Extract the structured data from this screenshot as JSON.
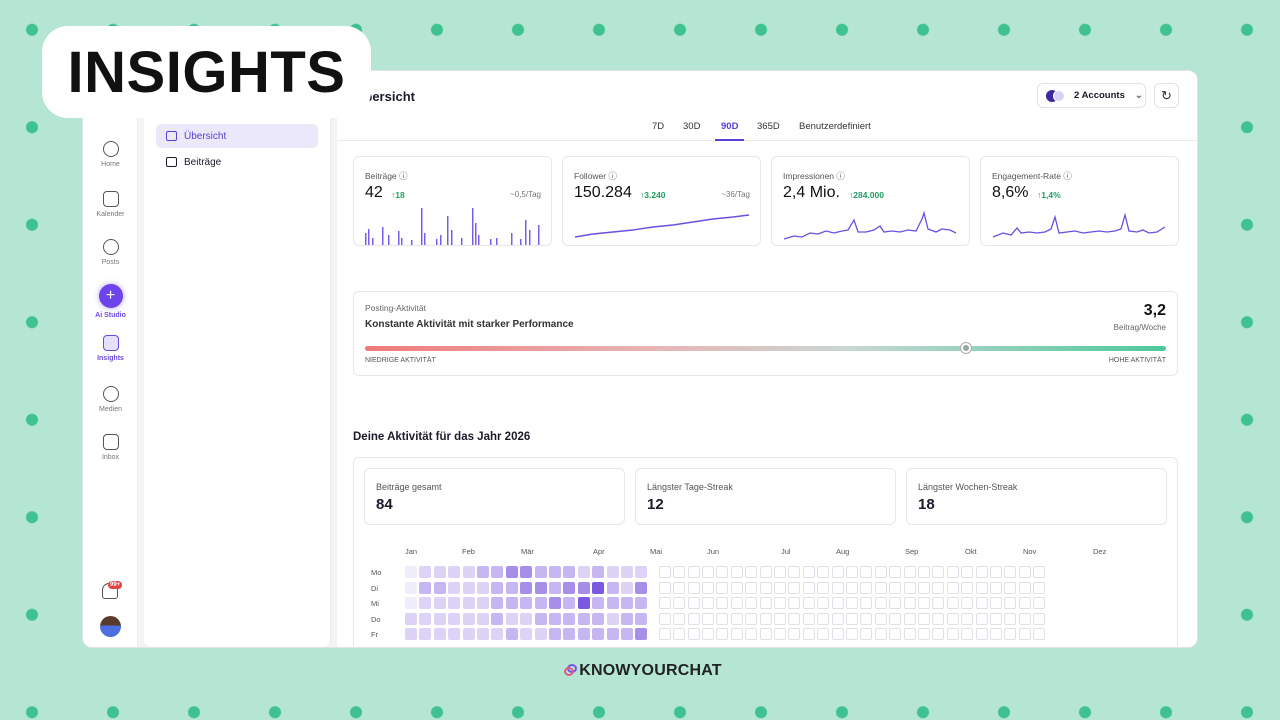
{
  "badge": "INSIGHTS",
  "rail": [
    {
      "label": "Home",
      "top": 70
    },
    {
      "label": "Kalender"
    },
    {
      "label": "Posts"
    },
    {
      "label": "Ai Studio"
    },
    {
      "label": "Insights"
    },
    {
      "label": "Medien"
    },
    {
      "label": "Inbox"
    }
  ],
  "notifications_count": "99+",
  "subnav": [
    "Übersicht",
    "Beiträge"
  ],
  "page_title": "Übersicht",
  "accounts_label": "2 Accounts",
  "tabs": [
    "7D",
    "30D",
    "90D",
    "365D",
    "Benutzerdefiniert"
  ],
  "active_tab": "90D",
  "metrics": [
    {
      "label": "Beiträge",
      "value": "42",
      "delta": "↑18",
      "rate": "~0,5/Tag"
    },
    {
      "label": "Follower",
      "value": "150.284",
      "delta": "↑3.240",
      "rate": "~36/Tag"
    },
    {
      "label": "Impressionen",
      "value": "2,4 Mio.",
      "delta": "↑284.000",
      "rate": ""
    },
    {
      "label": "Engagement-Rate",
      "value": "8,6%",
      "delta": "↑1,4%",
      "rate": ""
    }
  ],
  "posting_activity": {
    "label": "Posting-Aktivität",
    "description": "Konstante Aktivität mit starker Performance",
    "value": "3,2",
    "unit": "Beitrag/Woche",
    "low_label": "NIEDRIGE AKTIVITÄT",
    "high_label": "HOHE AKTIVITÄT",
    "level": 0.75
  },
  "year_title": "Deine Aktivität für das Jahr 2026",
  "year_stats": [
    {
      "label": "Beiträge gesamt",
      "value": "84"
    },
    {
      "label": "Längster Tage-Streak",
      "value": "12"
    },
    {
      "label": "Längster Wochen-Streak",
      "value": "18"
    }
  ],
  "months": [
    "Jan",
    "Feb",
    "Mär",
    "Apr",
    "Mai",
    "Jun",
    "Jul",
    "Aug",
    "Sep",
    "Okt",
    "Nov",
    "Dez"
  ],
  "days": [
    "Mo",
    "Di",
    "Mi",
    "Do",
    "Fr"
  ],
  "heatmap_levels": [
    [
      0,
      1,
      1,
      1,
      1,
      2,
      2,
      3,
      3,
      2,
      2,
      2,
      1,
      2,
      1,
      1,
      1
    ],
    [
      0,
      2,
      2,
      1,
      1,
      1,
      2,
      2,
      3,
      3,
      2,
      3,
      3,
      4,
      2,
      1,
      3
    ],
    [
      0,
      1,
      1,
      1,
      1,
      1,
      2,
      2,
      2,
      2,
      3,
      2,
      4,
      2,
      2,
      2,
      2
    ],
    [
      1,
      1,
      1,
      1,
      1,
      1,
      2,
      1,
      1,
      2,
      2,
      2,
      2,
      2,
      1,
      2,
      2
    ],
    [
      1,
      1,
      1,
      1,
      1,
      1,
      1,
      2,
      1,
      1,
      2,
      2,
      2,
      2,
      2,
      2,
      3
    ]
  ],
  "footer": "KNOWYOURCHAT",
  "colors": {
    "accent": "#5b3fd4",
    "positive": "#1f9e62",
    "heat": [
      "#f1eefb",
      "#ddd3f7",
      "#c6b6f1",
      "#a78ee9",
      "#7a58e0"
    ]
  }
}
